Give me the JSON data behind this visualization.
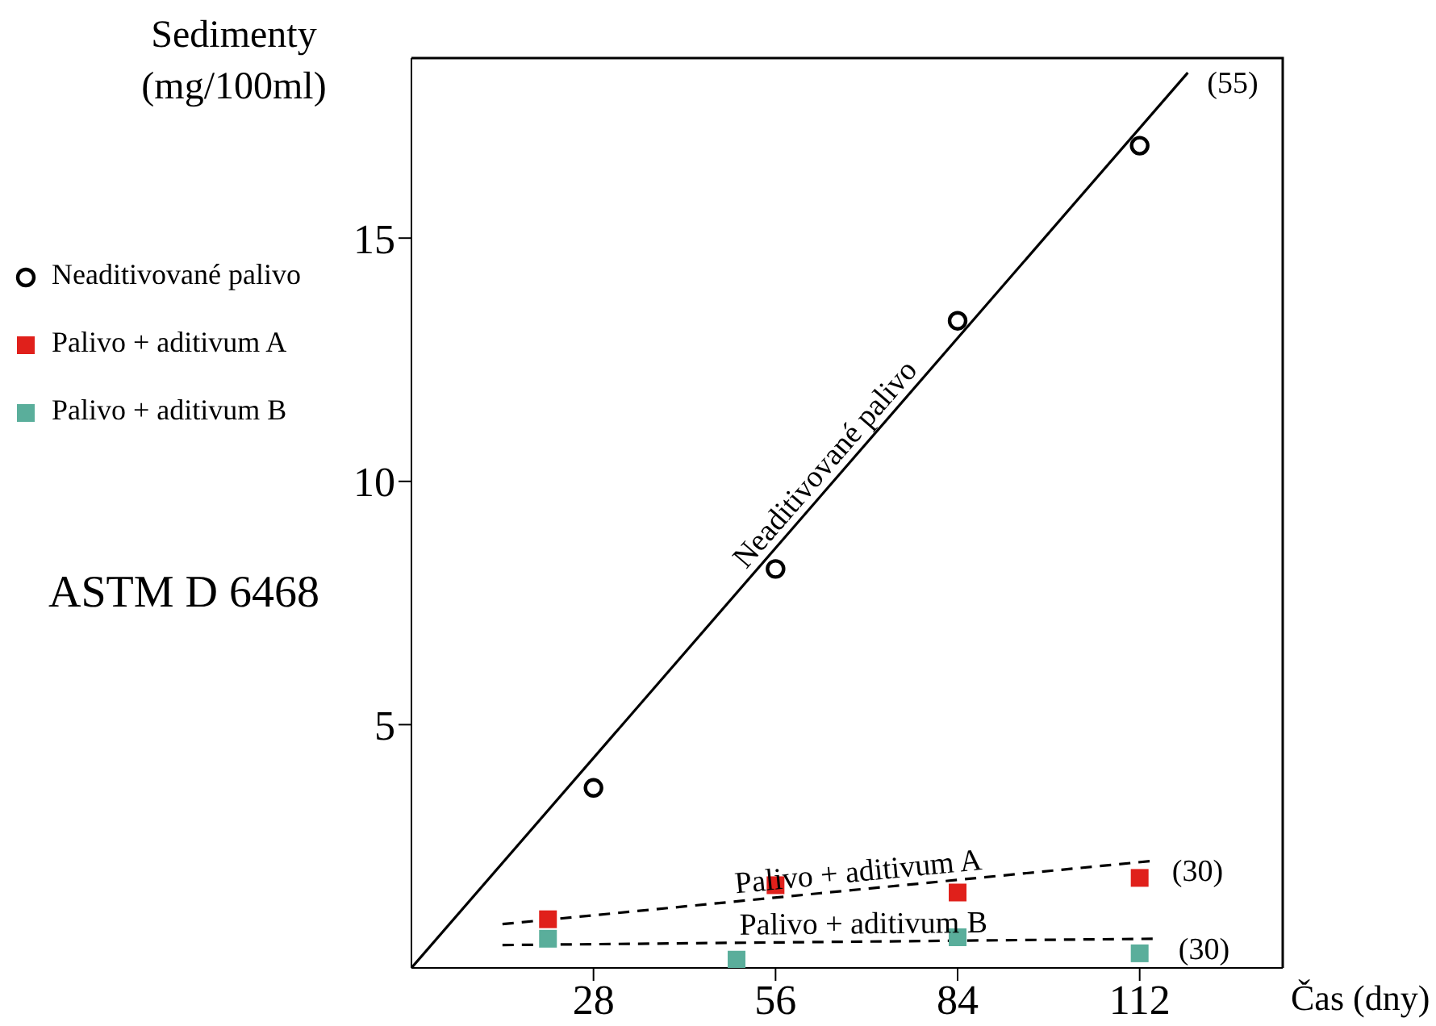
{
  "chart_data": {
    "type": "scatter",
    "ylabel": "Sedimenty (mg/100ml)",
    "xlabel": "Čas (dny)",
    "xlim": [
      0,
      134
    ],
    "xticks": [
      28,
      56,
      84,
      112
    ],
    "ylim": [
      0,
      18.7
    ],
    "yticks": [
      5,
      10,
      15
    ],
    "grid": false,
    "legend": "left",
    "series": [
      {
        "name": "Neaditivované palivo",
        "marker": "circle",
        "color": "#000000",
        "x": [
          28,
          56,
          84,
          112
        ],
        "values": [
          3.7,
          8.2,
          13.3,
          16.9
        ]
      },
      {
        "name": "Palivo + aditivum A",
        "marker": "square",
        "color": "#e0201b",
        "x": [
          21,
          56,
          84,
          112
        ],
        "values": [
          1.0,
          1.7,
          1.55,
          1.85
        ]
      },
      {
        "name": "Palivo + aditivum B",
        "marker": "square",
        "color": "#5aae9b",
        "x": [
          21,
          50,
          84,
          112
        ],
        "values": [
          0.6,
          0.17,
          0.63,
          0.3
        ]
      },
      {
        "name": "Neaditivované palivo",
        "type": "line",
        "line_style": "solid",
        "color": "#000000",
        "x": [
          0,
          119.4
        ],
        "values": [
          0,
          18.4
        ]
      },
      {
        "name": "Palivo + aditivum A",
        "type": "line",
        "line_style": "dashed",
        "color": "#000000",
        "x": [
          14,
          114
        ],
        "values": [
          0.9,
          2.2
        ]
      },
      {
        "name": "Palivo + aditivum B",
        "type": "line",
        "line_style": "dashed",
        "color": "#000000",
        "x": [
          14,
          115
        ],
        "values": [
          0.47,
          0.6
        ]
      }
    ],
    "annotations": [
      {
        "text": "(55)",
        "x": 119.4,
        "y": 18.4
      },
      {
        "text": "(30)",
        "x": 114,
        "y": 2.2
      },
      {
        "text": "(30)",
        "x": 115,
        "y": 0.6
      },
      "ASTM D 6468"
    ]
  }
}
